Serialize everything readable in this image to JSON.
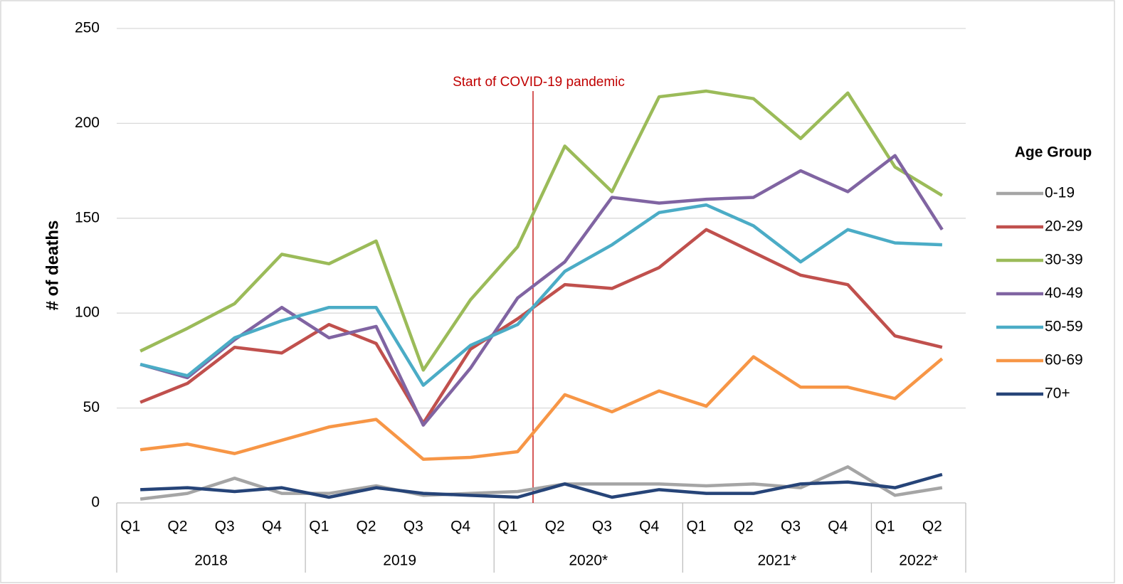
{
  "chart_data": {
    "type": "line",
    "ylabel": "# of deaths",
    "legend_title": "Age Group",
    "legend": "right",
    "grid": true,
    "annotation": "Start of COVID-19 pandemic",
    "categories": [
      "Q1",
      "Q2",
      "Q3",
      "Q4",
      "Q1",
      "Q2",
      "Q3",
      "Q4",
      "Q1",
      "Q2",
      "Q3",
      "Q4",
      "Q1",
      "Q2",
      "Q3",
      "Q4",
      "Q1",
      "Q2"
    ],
    "groups": [
      {
        "label": "2018",
        "count": 4
      },
      {
        "label": "2019",
        "count": 4
      },
      {
        "label": "2020*",
        "count": 4
      },
      {
        "label": "2021*",
        "count": 4
      },
      {
        "label": "2022*",
        "count": 2
      }
    ],
    "ylim": [
      0,
      250
    ],
    "yticks": [
      0,
      50,
      100,
      150,
      200,
      250
    ],
    "series": [
      {
        "name": "0-19",
        "color": "#a5a5a5",
        "values": [
          2,
          5,
          13,
          5,
          5,
          9,
          4,
          5,
          6,
          10,
          10,
          10,
          9,
          10,
          8,
          19,
          4,
          8
        ]
      },
      {
        "name": "20-29",
        "color": "#c0504d",
        "values": [
          53,
          63,
          82,
          79,
          94,
          84,
          42,
          81,
          97,
          115,
          113,
          124,
          144,
          132,
          120,
          115,
          88,
          82
        ]
      },
      {
        "name": "30-39",
        "color": "#9bbb59",
        "values": [
          80,
          92,
          105,
          131,
          126,
          138,
          70,
          107,
          135,
          188,
          164,
          214,
          217,
          213,
          192,
          216,
          177,
          162
        ]
      },
      {
        "name": "40-49",
        "color": "#8064a2",
        "values": [
          73,
          66,
          86,
          103,
          87,
          93,
          41,
          71,
          108,
          127,
          161,
          158,
          160,
          161,
          175,
          164,
          183,
          144
        ]
      },
      {
        "name": "50-59",
        "color": "#4bacc6",
        "values": [
          73,
          67,
          87,
          96,
          103,
          103,
          62,
          83,
          94,
          122,
          136,
          153,
          157,
          146,
          127,
          144,
          137,
          136
        ]
      },
      {
        "name": "60-69",
        "color": "#f79646",
        "values": [
          28,
          31,
          26,
          33,
          40,
          44,
          23,
          24,
          27,
          57,
          48,
          59,
          51,
          77,
          61,
          61,
          55,
          76
        ]
      },
      {
        "name": "70+",
        "color": "#264478",
        "values": [
          7,
          8,
          6,
          8,
          3,
          8,
          5,
          4,
          3,
          10,
          3,
          7,
          5,
          5,
          10,
          11,
          8,
          15
        ]
      }
    ]
  }
}
